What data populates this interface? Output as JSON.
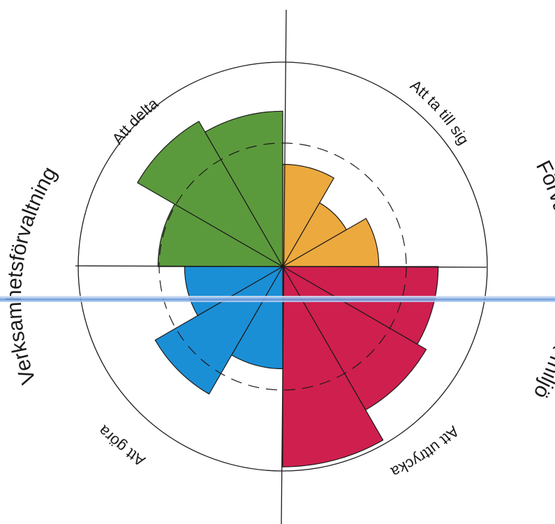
{
  "labels": {
    "att_delta": "Att delta",
    "att_ta_till_sig": "Att ta till sig",
    "att_uttrycka": "Att uttrycka",
    "att_gora": "Att göra",
    "verksamhet": "Verksamhetsförvaltning",
    "forvaltning_fysisk": "Förvaltning av fysisk miljö"
  },
  "colors": {
    "green": "#5b9a3c",
    "orange": "#eca93e",
    "red": "#cf1f4f",
    "blue": "#1b8fd6",
    "line": "#1a1a1a"
  },
  "scale": {
    "outer": 1.0,
    "dashed": 0.6
  },
  "quadrants": [
    {
      "name": "Att delta",
      "color": "green",
      "values": [
        0.61,
        0.82,
        0.76
      ]
    },
    {
      "name": "Att ta till sig",
      "color": "orange",
      "values": [
        0.5,
        0.36,
        0.47
      ]
    },
    {
      "name": "Att uttrycka",
      "color": "red",
      "values": [
        0.76,
        0.81,
        0.98
      ]
    },
    {
      "name": "Att göra",
      "color": "blue",
      "values": [
        0.5,
        0.72,
        0.48
      ]
    }
  ]
}
